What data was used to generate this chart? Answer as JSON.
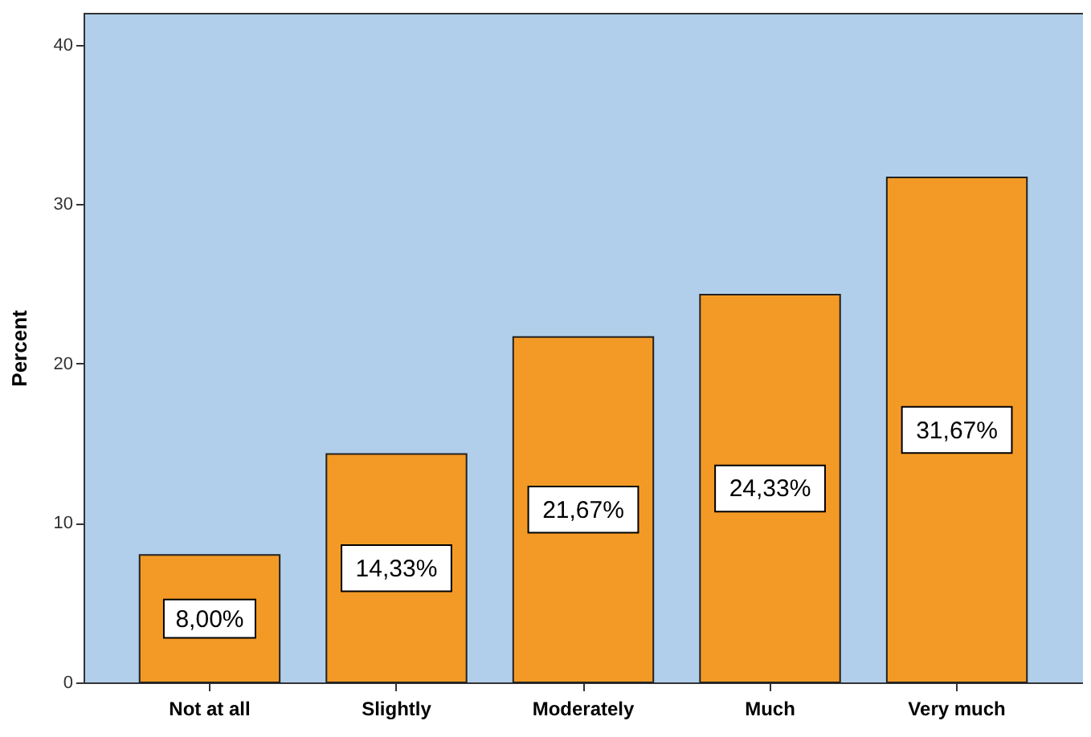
{
  "chart_data": {
    "type": "bar",
    "ylabel": "Percent",
    "categories": [
      "Not at all",
      "Slightly",
      "Moderately",
      "Much",
      "Very much"
    ],
    "values": [
      8.0,
      14.33,
      21.67,
      24.33,
      31.67
    ],
    "value_labels": [
      "8,00%",
      "14,33%",
      "21,67%",
      "24,33%",
      "31,67%"
    ],
    "color": "#f39a26",
    "ylim": [
      0,
      42
    ],
    "yticks": [
      0,
      10,
      20,
      30,
      40
    ],
    "grid": false
  }
}
